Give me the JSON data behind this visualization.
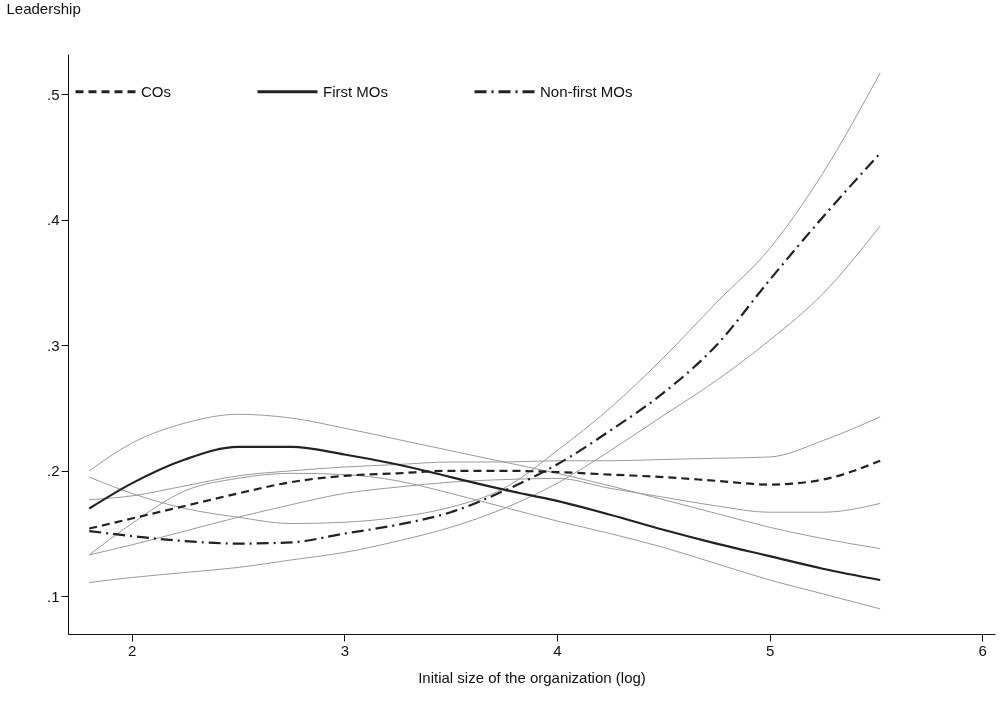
{
  "chart_data": {
    "type": "line",
    "ylabel": "Leadership",
    "xlabel": "Initial size of the organization (log)",
    "x": [
      1.8,
      2,
      2.25,
      2.5,
      2.75,
      3,
      3.25,
      3.5,
      3.75,
      4,
      4.25,
      4.5,
      4.75,
      5,
      5.25,
      5.52
    ],
    "xlim": [
      1.7,
      6.06
    ],
    "xticks": [
      2,
      3,
      4,
      5,
      6
    ],
    "ylim": [
      0.07,
      0.532
    ],
    "yticks": [
      {
        "value": 0.1,
        "label": ".1"
      },
      {
        "value": 0.2,
        "label": ".2"
      },
      {
        "value": 0.3,
        "label": ".3"
      },
      {
        "value": 0.4,
        "label": ".4"
      },
      {
        "value": 0.5,
        "label": ".5"
      }
    ],
    "grid": false,
    "legend": "top left",
    "marker": "none",
    "series": [
      {
        "name": "COs",
        "color": "#222222",
        "line_style": "dashed",
        "values": [
          0.154,
          0.162,
          0.172,
          0.182,
          0.191,
          0.196,
          0.198,
          0.2,
          0.2,
          0.199,
          0.197,
          0.195,
          0.192,
          0.189,
          0.193,
          0.208
        ]
      },
      {
        "name": "First MOs",
        "color": "#222222",
        "line_style": "solid",
        "values": [
          0.17,
          0.19,
          0.209,
          0.219,
          0.219,
          0.213,
          0.205,
          0.195,
          0.185,
          0.176,
          0.165,
          0.153,
          0.142,
          0.132,
          0.122,
          0.113
        ]
      },
      {
        "name": "Non-first MOs",
        "color": "#222222",
        "line_style": "dashdot",
        "values": [
          0.152,
          0.148,
          0.144,
          0.142,
          0.143,
          0.15,
          0.157,
          0.167,
          0.184,
          0.205,
          0.232,
          0.262,
          0.3,
          0.352,
          0.402,
          0.453
        ]
      },
      {
        "color": "#9a9a9a",
        "line_style": "solid",
        "values": [
          0.177,
          0.18,
          0.188,
          0.196,
          0.2,
          0.203,
          0.205,
          0.207,
          0.207,
          0.208,
          0.208,
          0.209,
          0.21,
          0.211,
          0.224,
          0.243
        ]
      },
      {
        "color": "#9a9a9a",
        "line_style": "solid",
        "values": [
          0.133,
          0.141,
          0.152,
          0.163,
          0.173,
          0.182,
          0.187,
          0.191,
          0.193,
          0.194,
          0.186,
          0.179,
          0.172,
          0.167,
          0.167,
          0.174
        ]
      },
      {
        "color": "#9a9a9a",
        "line_style": "solid",
        "values": [
          0.2,
          0.222,
          0.238,
          0.245,
          0.242,
          0.234,
          0.225,
          0.216,
          0.207,
          0.198,
          0.188,
          0.177,
          0.166,
          0.155,
          0.146,
          0.138
        ]
      },
      {
        "color": "#9a9a9a",
        "line_style": "solid",
        "values": [
          0.133,
          0.158,
          0.184,
          0.194,
          0.198,
          0.197,
          0.192,
          0.182,
          0.171,
          0.16,
          0.15,
          0.139,
          0.126,
          0.113,
          0.102,
          0.09
        ]
      },
      {
        "color": "#9a9a9a",
        "line_style": "solid",
        "values": [
          0.195,
          0.182,
          0.17,
          0.163,
          0.158,
          0.159,
          0.163,
          0.171,
          0.186,
          0.216,
          0.25,
          0.29,
          0.334,
          0.377,
          0.437,
          0.517
        ]
      },
      {
        "color": "#9a9a9a",
        "line_style": "solid",
        "values": [
          0.111,
          0.115,
          0.119,
          0.123,
          0.129,
          0.135,
          0.144,
          0.155,
          0.17,
          0.19,
          0.216,
          0.244,
          0.272,
          0.304,
          0.341,
          0.395
        ]
      }
    ]
  }
}
